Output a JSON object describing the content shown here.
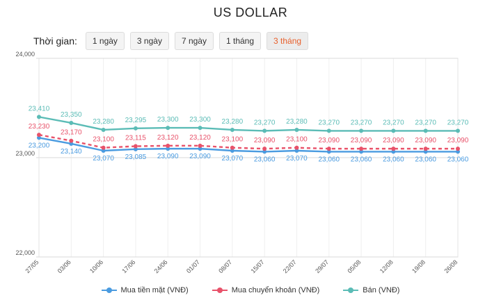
{
  "title": "US DOLLAR",
  "time_range": {
    "label": "Thời gian:",
    "options": [
      "1 ngày",
      "3 ngày",
      "7 ngày",
      "1 tháng",
      "3 tháng"
    ],
    "selected": "3 tháng"
  },
  "chart_data": {
    "type": "line",
    "title": "US DOLLAR",
    "xlabel": "",
    "ylabel": "",
    "categories": [
      "27/05",
      "03/06",
      "10/06",
      "17/06",
      "24/06",
      "01/07",
      "08/07",
      "15/07",
      "22/07",
      "29/07",
      "05/08",
      "12/08",
      "19/08",
      "26/08"
    ],
    "ylim": [
      22000,
      24000
    ],
    "yticks": [
      "22,000",
      "23,000",
      "24,000"
    ],
    "grid": true,
    "legend_position": "bottom",
    "series": [
      {
        "name": "Mua tiền mặt (VNĐ)",
        "color": "#4a9be0",
        "dashed": false,
        "values": [
          23200,
          23140,
          23070,
          23085,
          23090,
          23090,
          23070,
          23060,
          23070,
          23060,
          23060,
          23060,
          23060,
          23060
        ],
        "labels": [
          "23,200",
          "23,140",
          "23,070",
          "23,085",
          "23,090",
          "23,090",
          "23,070",
          "23,060",
          "23,070",
          "23,060",
          "23,060",
          "23,060",
          "23,060",
          "23,060"
        ]
      },
      {
        "name": "Mua chuyển khoản (VNĐ)",
        "color": "#e8526a",
        "dashed": true,
        "values": [
          23230,
          23170,
          23100,
          23115,
          23120,
          23120,
          23100,
          23090,
          23100,
          23090,
          23090,
          23090,
          23090,
          23090
        ],
        "labels": [
          "23,230",
          "23,170",
          "23,100",
          "23,115",
          "23,120",
          "23,120",
          "23,100",
          "23,090",
          "23,100",
          "23,090",
          "23,090",
          "23,090",
          "23,090",
          "23,090"
        ]
      },
      {
        "name": "Bán (VNĐ)",
        "color": "#5bbcb6",
        "dashed": false,
        "values": [
          23410,
          23350,
          23280,
          23295,
          23300,
          23300,
          23280,
          23270,
          23280,
          23270,
          23270,
          23270,
          23270,
          23270
        ],
        "labels": [
          "23,410",
          "23,350",
          "23,280",
          "23,295",
          "23,300",
          "23,300",
          "23,280",
          "23,270",
          "23,280",
          "23,270",
          "23,270",
          "23,270",
          "23,270",
          "23,270"
        ]
      }
    ]
  }
}
